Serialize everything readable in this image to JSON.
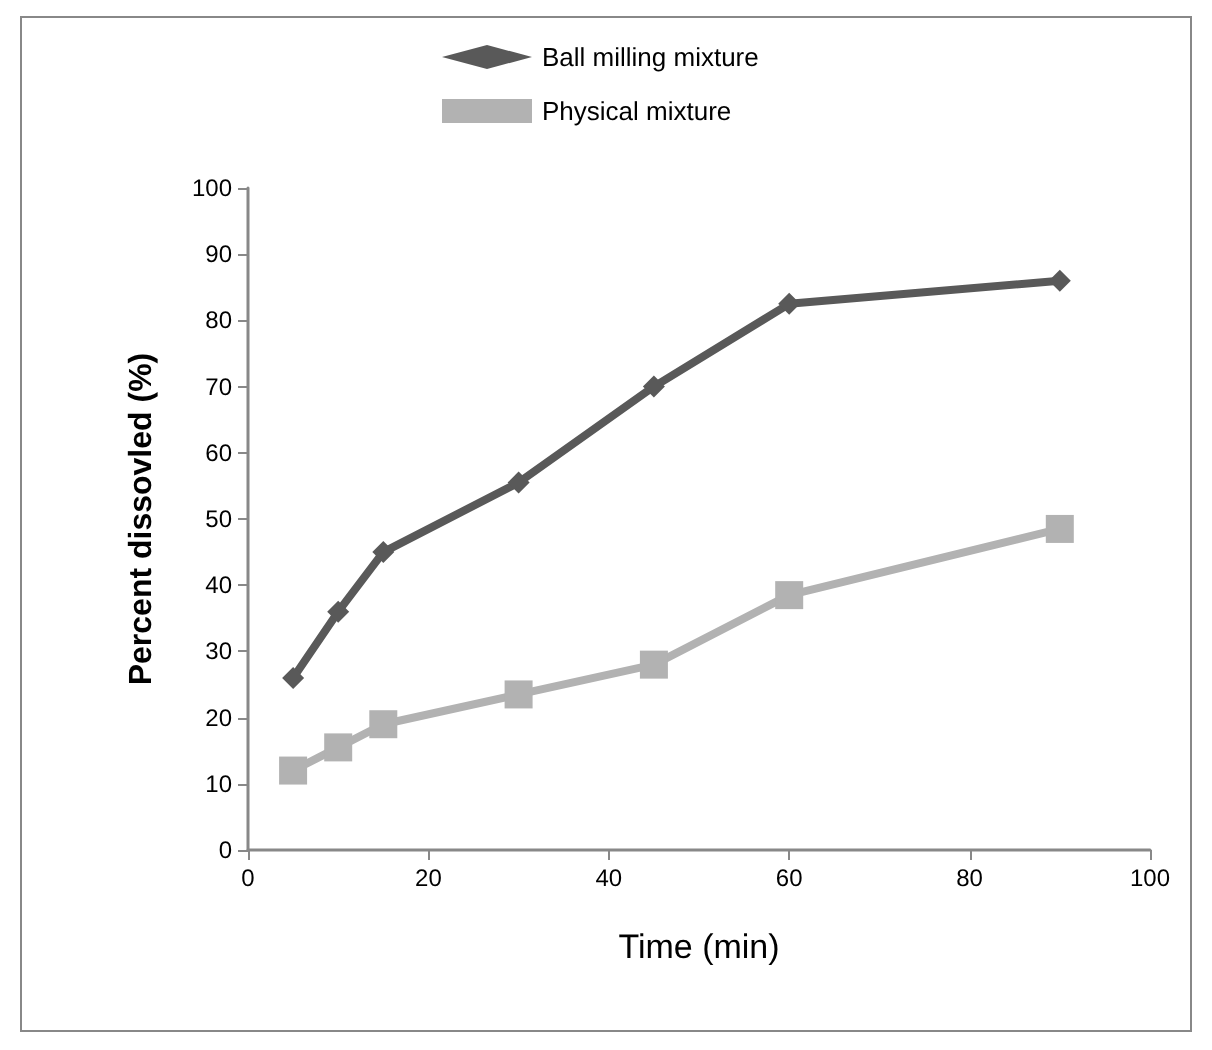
{
  "chart_data": {
    "type": "line",
    "xlabel": "Time (min)",
    "ylabel": "Percent dissovled (%)",
    "xlim": [
      0,
      100
    ],
    "xticks": [
      0,
      20,
      40,
      60,
      80,
      100
    ],
    "ylim": [
      0,
      100
    ],
    "yticks": [
      0,
      10,
      20,
      30,
      40,
      50,
      60,
      70,
      80,
      90,
      100
    ],
    "grid": false,
    "legend": "top",
    "line_style": "solid",
    "series": [
      {
        "name": "Ball milling mixture",
        "color": "#595959",
        "marker": "diamond",
        "x": [
          5,
          10,
          15,
          30,
          45,
          60,
          90
        ],
        "values": [
          26,
          36,
          45,
          55.5,
          70,
          82.5,
          86
        ]
      },
      {
        "name": "Physical mixture",
        "color": "#b2b2b2",
        "marker": "square",
        "x": [
          5,
          10,
          15,
          30,
          45,
          60,
          90
        ],
        "values": [
          12,
          15.5,
          19,
          23.5,
          28,
          38.5,
          48.5
        ]
      }
    ]
  }
}
